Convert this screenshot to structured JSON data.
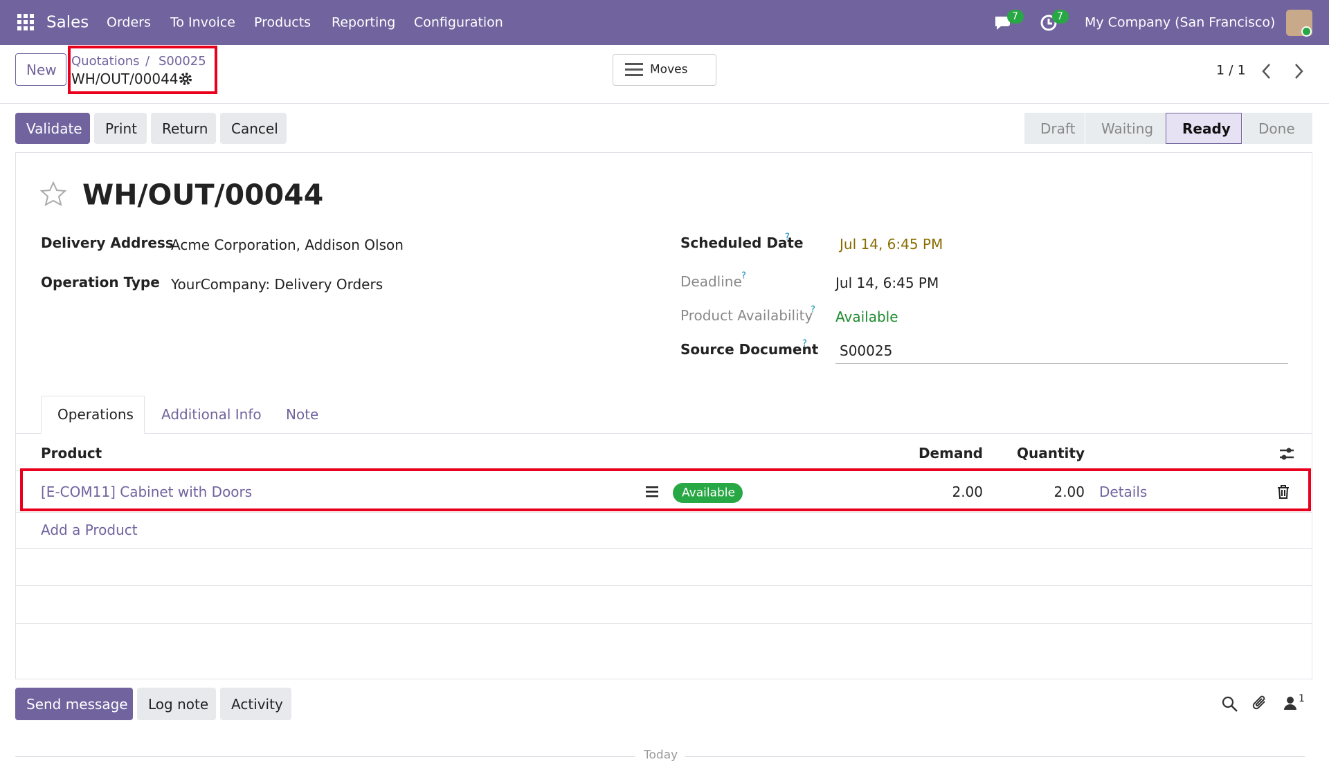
{
  "navbar": {
    "app": "Sales",
    "menu": [
      "Orders",
      "To Invoice",
      "Products",
      "Reporting",
      "Configuration"
    ],
    "messages_count": "7",
    "activities_count": "7",
    "company": "My Company (San Francisco)"
  },
  "control_panel": {
    "new_button": "New",
    "breadcrumb": [
      "Quotations",
      "S00025"
    ],
    "breadcrumb_separator": "/",
    "record": "WH/OUT/00044",
    "moves_button": "Moves",
    "pager": "1 / 1"
  },
  "actions": [
    "Validate",
    "Print",
    "Return",
    "Cancel"
  ],
  "statusbar": {
    "stages": [
      "Draft",
      "Waiting",
      "Ready",
      "Done"
    ],
    "active": "Ready"
  },
  "form": {
    "title": "WH/OUT/00044",
    "help_marker": "?",
    "fields_left": [
      {
        "label": "Delivery Address",
        "value": "Acme Corporation, Addison Olson"
      },
      {
        "label": "Operation Type",
        "value": "YourCompany: Delivery Orders"
      }
    ],
    "fields_right": [
      {
        "label": "Scheduled Date",
        "value": "Jul 14, 6:45 PM"
      },
      {
        "label": "Deadline",
        "value": "Jul 14, 6:45 PM"
      },
      {
        "label": "Product Availability",
        "value": "Available"
      },
      {
        "label": "Source Document",
        "value": "S00025"
      }
    ]
  },
  "tabs": [
    "Operations",
    "Additional Info",
    "Note"
  ],
  "table": {
    "headers": [
      "Product",
      "Demand",
      "Quantity"
    ],
    "rows": [
      {
        "product": "[E-COM11] Cabinet with Doors",
        "availability": "Available",
        "demand": "2.00",
        "quantity": "2.00",
        "details": "Details"
      }
    ],
    "add_line": "Add a Product"
  },
  "chatter": {
    "buttons": [
      "Send message",
      "Log note",
      "Activity"
    ],
    "followers_count": "1",
    "separator": "Today"
  }
}
